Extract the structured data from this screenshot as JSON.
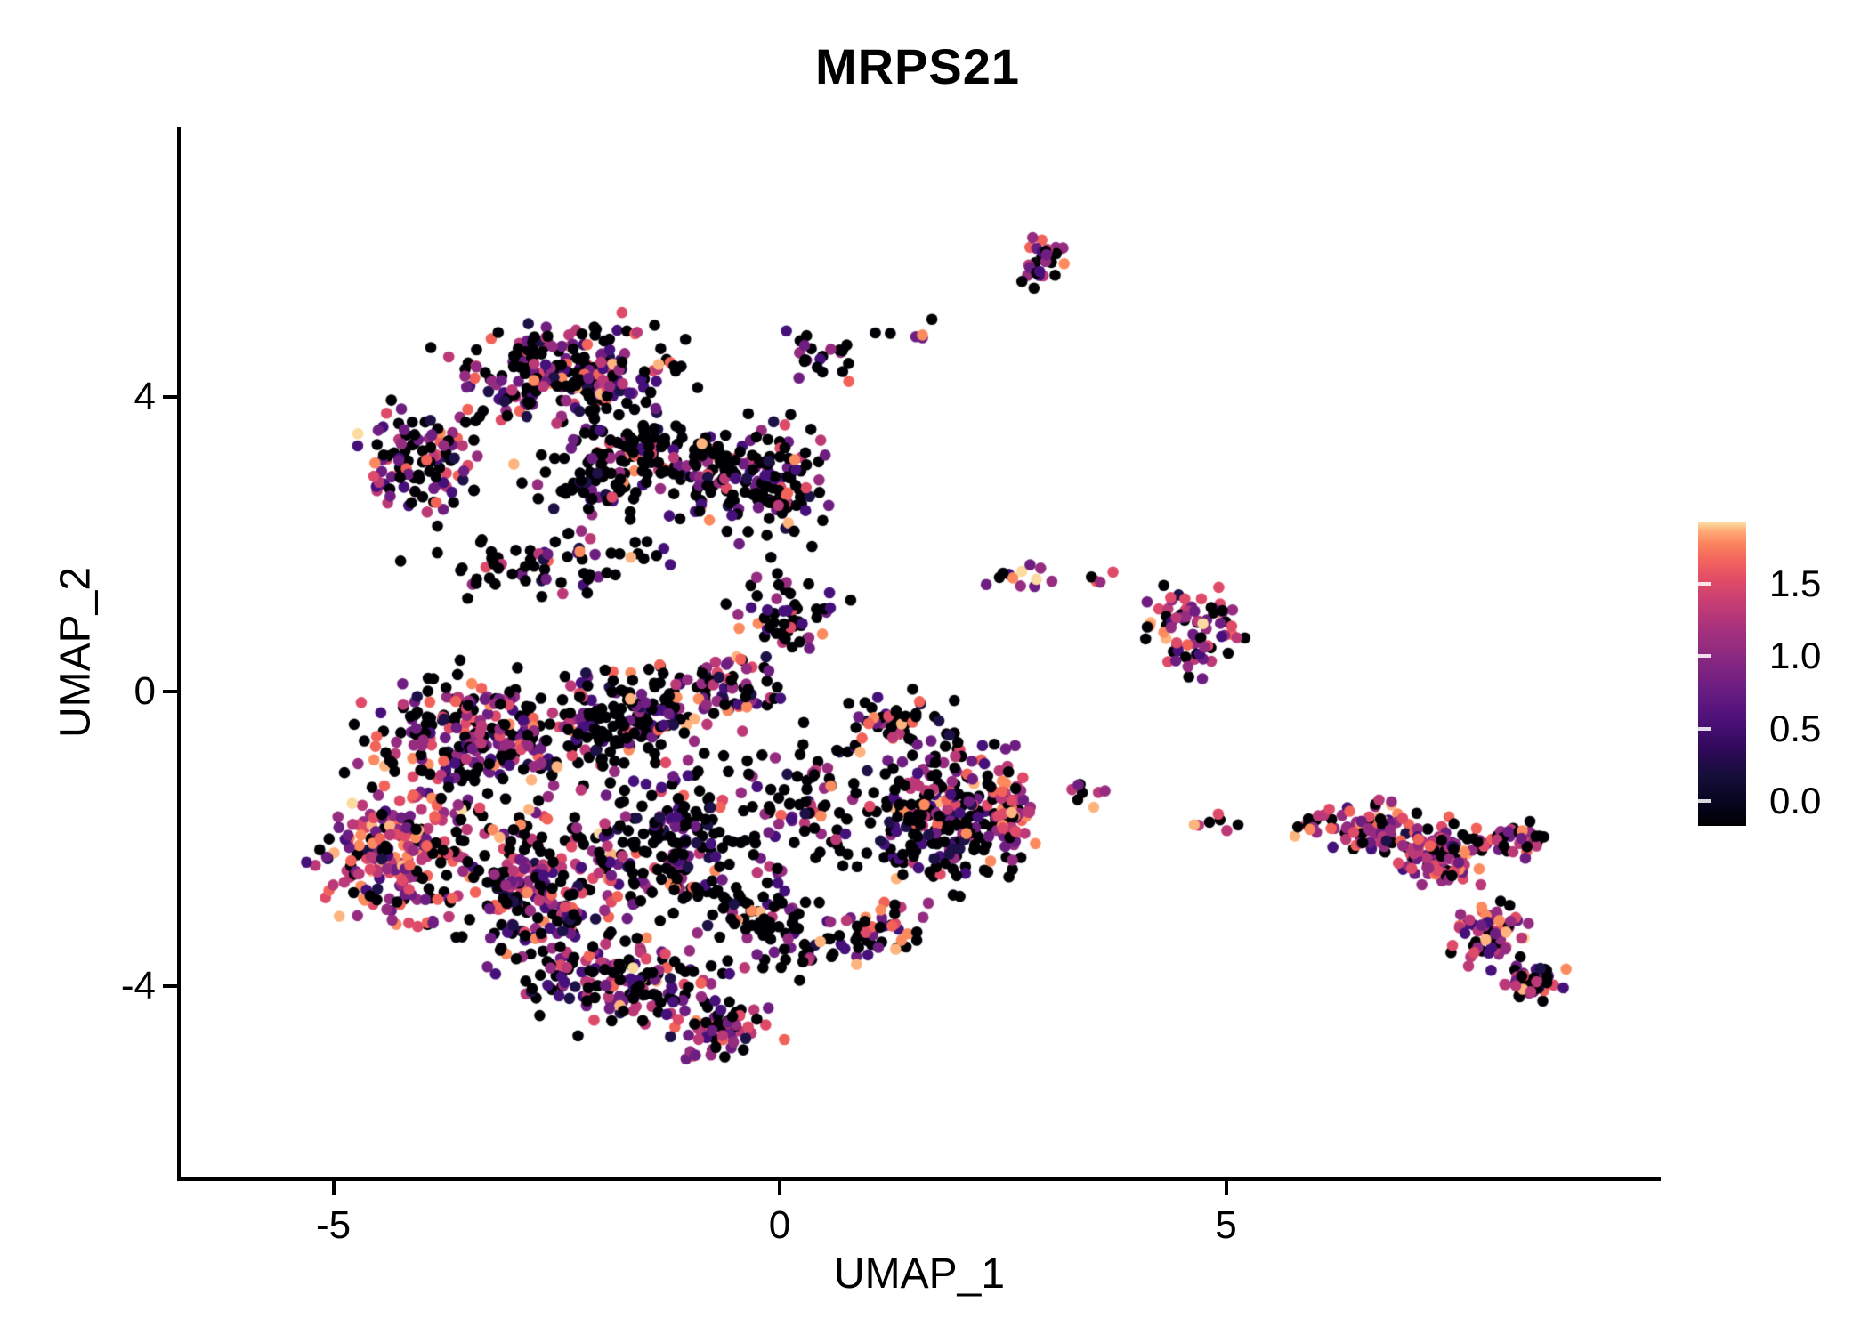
{
  "title": "MRPS21",
  "axes": {
    "x": {
      "label": "UMAP_1",
      "tick_labels": [
        "-5",
        "0",
        "5"
      ],
      "tick_values": [
        -5,
        0,
        5
      ]
    },
    "y": {
      "label": "UMAP_2",
      "tick_labels": [
        "4",
        "0",
        "-4"
      ],
      "tick_values": [
        4,
        0,
        -4
      ]
    }
  },
  "legend": {
    "tick_labels": [
      "1.5",
      "1.0",
      "0.5",
      "0.0"
    ],
    "tick_values": [
      1.5,
      1.0,
      0.5,
      0.0
    ],
    "scale_min": -0.17,
    "scale_max": 1.93,
    "gradient_stops": [
      {
        "at": 0.0,
        "color": "#000004"
      },
      {
        "at": 0.08,
        "color": "#07051f"
      },
      {
        "at": 0.16,
        "color": "#150e38"
      },
      {
        "at": 0.26,
        "color": "#32095d"
      },
      {
        "at": 0.36,
        "color": "#50127b"
      },
      {
        "at": 0.46,
        "color": "#6e1e81"
      },
      {
        "at": 0.56,
        "color": "#8c2981"
      },
      {
        "at": 0.66,
        "color": "#ab337c"
      },
      {
        "at": 0.74,
        "color": "#c83e73"
      },
      {
        "at": 0.82,
        "color": "#e44f64"
      },
      {
        "at": 0.88,
        "color": "#f4685c"
      },
      {
        "at": 0.93,
        "color": "#fb8560"
      },
      {
        "at": 0.97,
        "color": "#feac76"
      },
      {
        "at": 1.0,
        "color": "#fbe3a9"
      }
    ]
  },
  "chart_data": {
    "type": "scatter",
    "title": "MRPS21",
    "xlabel": "UMAP_1",
    "ylabel": "UMAP_2",
    "xlim": [
      -6.73,
      9.83
    ],
    "ylim": [
      -6.6,
      7.67
    ],
    "grid": false,
    "legend_position": "right",
    "colormap": "magma",
    "color_scale": {
      "min": 0.0,
      "max": 1.9,
      "ticks": [
        0.0,
        0.5,
        1.0,
        1.5
      ]
    },
    "n_points_approx": 3260,
    "palette": [
      {
        "name": "black",
        "hex": "#000004"
      },
      {
        "name": "navy",
        "hex": "#1d1147"
      },
      {
        "name": "dark-purple",
        "hex": "#45107a"
      },
      {
        "name": "purple",
        "hex": "#6e1e81"
      },
      {
        "name": "violet",
        "hex": "#952c80"
      },
      {
        "name": "magenta",
        "hex": "#bc3978"
      },
      {
        "name": "pink",
        "hex": "#de4a68"
      },
      {
        "name": "salmon",
        "hex": "#f26258"
      },
      {
        "name": "orange",
        "hex": "#fc8a5f"
      },
      {
        "name": "light-orange",
        "hex": "#feb47e"
      },
      {
        "name": "cream",
        "hex": "#fbdb9f"
      }
    ],
    "mixes": {
      "dim": [
        0.58,
        0.05,
        0.1,
        0.08,
        0.06,
        0.05,
        0.03,
        0.02,
        0.02,
        0.008,
        0.002
      ],
      "mid": [
        0.4,
        0.04,
        0.1,
        0.12,
        0.1,
        0.09,
        0.06,
        0.04,
        0.03,
        0.015,
        0.005
      ],
      "bright": [
        0.27,
        0.03,
        0.08,
        0.12,
        0.13,
        0.12,
        0.09,
        0.07,
        0.05,
        0.03,
        0.01
      ],
      "bright2": [
        0.18,
        0.02,
        0.07,
        0.12,
        0.14,
        0.16,
        0.12,
        0.09,
        0.06,
        0.03,
        0.01
      ]
    },
    "clusters": [
      {
        "name": "upper-blob-top",
        "cx": -2.3,
        "cy": 4.35,
        "rx": 1.55,
        "ry": 0.85,
        "n": 260,
        "mix": "mid"
      },
      {
        "name": "upper-blob-left-arm",
        "cx": -4.0,
        "cy": 3.2,
        "rx": 0.85,
        "ry": 0.8,
        "n": 110,
        "mix": "mid"
      },
      {
        "name": "upper-blob-core",
        "cx": -1.6,
        "cy": 3.1,
        "rx": 1.4,
        "ry": 0.85,
        "n": 180,
        "mix": "dim"
      },
      {
        "name": "upper-blob-right",
        "cx": -0.2,
        "cy": 2.9,
        "rx": 1.0,
        "ry": 1.0,
        "n": 150,
        "mix": "dim"
      },
      {
        "name": "upper-blob-ne-spur",
        "cx": 0.45,
        "cy": 4.6,
        "rx": 0.45,
        "ry": 0.4,
        "n": 22,
        "mix": "dim"
      },
      {
        "name": "inter-blob-band",
        "cx": -2.6,
        "cy": 1.7,
        "rx": 1.6,
        "ry": 0.55,
        "n": 70,
        "mix": "dim"
      },
      {
        "name": "center-column",
        "cx": 0.15,
        "cy": 1.1,
        "rx": 0.75,
        "ry": 0.85,
        "n": 60,
        "mix": "dim"
      },
      {
        "name": "top-small-cluster",
        "cx": 3.0,
        "cy": 5.9,
        "rx": 0.33,
        "ry": 0.42,
        "n": 34,
        "mix": "mid"
      },
      {
        "name": "top-trail",
        "cx": 1.5,
        "cy": 4.95,
        "rx": 0.7,
        "ry": 0.4,
        "n": 6,
        "mix": "dim"
      },
      {
        "name": "right-mid-cluster",
        "cx": 4.62,
        "cy": 0.9,
        "rx": 0.72,
        "ry": 0.72,
        "n": 78,
        "mix": "bright"
      },
      {
        "name": "small-cluster-mid",
        "cx": 2.65,
        "cy": 1.5,
        "rx": 0.45,
        "ry": 0.28,
        "n": 12,
        "mix": "bright"
      },
      {
        "name": "isolated-dots",
        "cx": 3.6,
        "cy": 1.55,
        "rx": 0.3,
        "ry": 0.15,
        "n": 4,
        "mix": "bright"
      },
      {
        "name": "lower-mass-upper-left",
        "cx": -3.3,
        "cy": -0.6,
        "rx": 1.65,
        "ry": 1.05,
        "n": 260,
        "mix": "mid"
      },
      {
        "name": "lower-mass-upper-center",
        "cx": -1.7,
        "cy": -0.35,
        "rx": 1.2,
        "ry": 0.85,
        "n": 150,
        "mix": "dim"
      },
      {
        "name": "lower-mass-left-rim",
        "cx": -4.35,
        "cy": -2.2,
        "rx": 1.05,
        "ry": 1.15,
        "n": 200,
        "mix": "bright2"
      },
      {
        "name": "lower-mass-core",
        "cx": -2.7,
        "cy": -2.6,
        "rx": 1.3,
        "ry": 1.2,
        "n": 260,
        "mix": "mid"
      },
      {
        "name": "lower-mass-center-dark",
        "cx": -1.2,
        "cy": -2.0,
        "rx": 1.05,
        "ry": 1.3,
        "n": 180,
        "mix": "dim"
      },
      {
        "name": "lower-mass-bottom-band",
        "cx": -1.8,
        "cy": -4.0,
        "rx": 1.45,
        "ry": 0.7,
        "n": 160,
        "mix": "mid"
      },
      {
        "name": "bottom-tip",
        "cx": -0.6,
        "cy": -4.6,
        "rx": 0.85,
        "ry": 0.45,
        "n": 60,
        "mix": "mid"
      },
      {
        "name": "lower-mass-bottom-right",
        "cx": -0.1,
        "cy": -3.2,
        "rx": 0.9,
        "ry": 0.85,
        "n": 90,
        "mix": "dim"
      },
      {
        "name": "center-gap-column",
        "cx": 0.3,
        "cy": -1.5,
        "rx": 0.85,
        "ry": 1.1,
        "n": 80,
        "mix": "dim"
      },
      {
        "name": "center-top-colorful",
        "cx": -0.6,
        "cy": 0.1,
        "rx": 0.8,
        "ry": 0.6,
        "n": 70,
        "mix": "mid"
      },
      {
        "name": "right-lobe-core",
        "cx": 1.8,
        "cy": -1.6,
        "rx": 1.0,
        "ry": 1.15,
        "n": 260,
        "mix": "dim"
      },
      {
        "name": "right-lobe-rim",
        "cx": 2.62,
        "cy": -1.6,
        "rx": 0.33,
        "ry": 0.9,
        "n": 70,
        "mix": "bright2"
      },
      {
        "name": "right-lobe-top",
        "cx": 1.3,
        "cy": -0.4,
        "rx": 0.7,
        "ry": 0.5,
        "n": 50,
        "mix": "dim"
      },
      {
        "name": "right-lobe-bottom",
        "cx": 1.1,
        "cy": -3.3,
        "rx": 0.7,
        "ry": 0.5,
        "n": 50,
        "mix": "mid"
      },
      {
        "name": "bridge-sparse-left",
        "cx": 3.6,
        "cy": -1.35,
        "rx": 0.55,
        "ry": 0.3,
        "n": 8,
        "mix": "bright2"
      },
      {
        "name": "bridge-sparse-right",
        "cx": 4.8,
        "cy": -1.75,
        "rx": 0.6,
        "ry": 0.22,
        "n": 7,
        "mix": "mid"
      },
      {
        "name": "east-cluster-west",
        "cx": 6.6,
        "cy": -1.85,
        "rx": 0.55,
        "ry": 0.45,
        "n": 70,
        "mix": "bright2"
      },
      {
        "name": "east-cluster-core",
        "cx": 7.4,
        "cy": -2.2,
        "rx": 0.7,
        "ry": 0.55,
        "n": 110,
        "mix": "bright2"
      },
      {
        "name": "east-cluster-tip",
        "cx": 8.3,
        "cy": -2.0,
        "rx": 0.45,
        "ry": 0.33,
        "n": 30,
        "mix": "mid"
      },
      {
        "name": "east-cluster-lower",
        "cx": 8.0,
        "cy": -3.3,
        "rx": 0.5,
        "ry": 0.5,
        "n": 60,
        "mix": "bright2"
      },
      {
        "name": "east-cluster-bottom-tip",
        "cx": 8.45,
        "cy": -3.95,
        "rx": 0.45,
        "ry": 0.3,
        "n": 40,
        "mix": "mid"
      },
      {
        "name": "east-cluster-west-tip",
        "cx": 5.95,
        "cy": -1.8,
        "rx": 0.28,
        "ry": 0.22,
        "n": 12,
        "mix": "mid"
      }
    ]
  },
  "render": {
    "seed": 1337,
    "point_radius": 6.3
  }
}
